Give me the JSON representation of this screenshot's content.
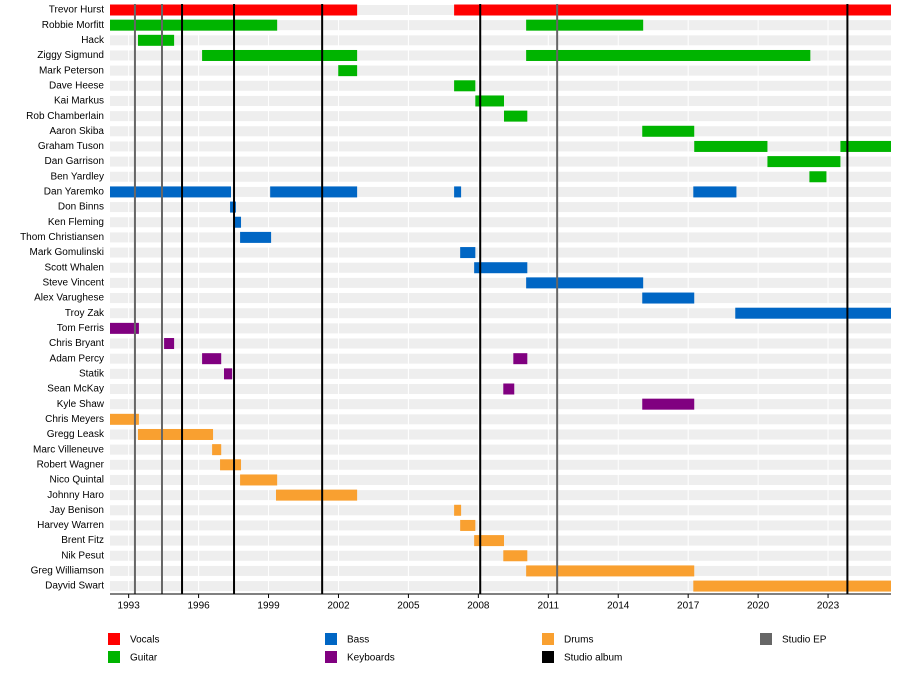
{
  "chart_data": {
    "type": "timeline",
    "categories": [
      "Trevor Hurst",
      "Robbie Morfitt",
      "Hack",
      "Ziggy Sigmund",
      "Mark Peterson",
      "Dave Heese",
      "Kai Markus",
      "Rob Chamberlain",
      "Aaron Skiba",
      "Graham Tuson",
      "Dan Garrison",
      "Ben Yardley",
      "Dan Yaremko",
      "Don Binns",
      "Ken Fleming",
      "Thom Christiansen",
      "Mark Gomulinski",
      "Scott Whalen",
      "Steve Vincent",
      "Alex Varughese",
      "Troy Zak",
      "Tom Ferris",
      "Chris Bryant",
      "Adam Percy",
      "Statik",
      "Sean McKay",
      "Kyle Shaw",
      "Chris Meyers",
      "Gregg Leask",
      "Marc Villeneuve",
      "Robert Wagner",
      "Nico Quintal",
      "Johnny Haro",
      "Jay Benison",
      "Harvey Warren",
      "Brent Fitz",
      "Nik Pesut",
      "Greg Williamson",
      "Dayvid Swart"
    ],
    "series": [
      {
        "name": "Vocals",
        "color": "#ff0000",
        "values": [
          [
            [
              1992.2,
              2002.8
            ],
            [
              2006.96,
              2025.7
            ]
          ],
          [],
          [],
          [],
          [],
          [],
          [],
          [],
          [],
          [],
          [],
          [],
          [],
          [],
          [],
          [],
          [],
          [],
          [],
          [],
          [],
          [],
          [],
          [],
          [],
          [],
          [],
          [],
          [],
          [],
          [],
          [],
          [],
          [],
          [],
          [],
          [],
          [],
          []
        ]
      },
      {
        "name": "Guitar",
        "color": "#00b400",
        "values": [
          [],
          [
            [
              1992.2,
              1999.37
            ],
            [
              2010.05,
              2015.07
            ]
          ],
          [
            [
              1993.4,
              1994.95
            ]
          ],
          [
            [
              1996.15,
              2002.8
            ],
            [
              2010.05,
              2022.24
            ]
          ],
          [
            [
              2001.99,
              2002.8
            ]
          ],
          [
            [
              2006.96,
              2007.87
            ]
          ],
          [
            [
              2007.87,
              2009.1
            ]
          ],
          [
            [
              2009.1,
              2010.1
            ]
          ],
          [
            [
              2015.03,
              2017.26
            ]
          ],
          [
            [
              2017.26,
              2020.4
            ],
            [
              2023.53,
              2025.7
            ]
          ],
          [
            [
              2020.4,
              2023.53
            ]
          ],
          [
            [
              2022.2,
              2022.93
            ]
          ],
          [],
          [],
          [],
          [],
          [],
          [],
          [],
          [],
          [],
          [],
          [],
          [],
          [],
          [],
          [],
          [],
          [],
          [],
          [],
          [],
          [],
          [],
          [],
          [],
          [],
          [],
          []
        ]
      },
      {
        "name": "Bass",
        "color": "#0066c4",
        "values": [
          [],
          [],
          [],
          [],
          [],
          [],
          [],
          [],
          [],
          [],
          [],
          [],
          [
            [
              1992.2,
              1997.39
            ],
            [
              1999.07,
              2002.8
            ],
            [
              2006.96,
              2007.26
            ],
            [
              2017.22,
              2019.07
            ]
          ],
          [
            [
              1997.35,
              1997.6
            ]
          ],
          [
            [
              1997.56,
              1997.82
            ]
          ],
          [
            [
              1997.78,
              1999.11
            ]
          ],
          [
            [
              2007.22,
              2007.87
            ]
          ],
          [
            [
              2007.82,
              2010.1
            ]
          ],
          [
            [
              2010.05,
              2015.07
            ]
          ],
          [
            [
              2015.03,
              2017.26
            ]
          ],
          [
            [
              2019.02,
              2025.7
            ]
          ],
          [],
          [],
          [],
          [],
          [],
          [],
          [],
          [],
          [],
          [],
          [],
          [],
          [],
          [],
          [],
          [],
          [],
          []
        ]
      },
      {
        "name": "Keyboards",
        "color": "#800080",
        "values": [
          [],
          [],
          [],
          [],
          [],
          [],
          [],
          [],
          [],
          [],
          [],
          [],
          [],
          [],
          [],
          [],
          [],
          [],
          [],
          [],
          [],
          [
            [
              1992.2,
              1993.44
            ]
          ],
          [
            [
              1994.52,
              1994.95
            ]
          ],
          [
            [
              1996.15,
              1996.97
            ],
            [
              2009.5,
              2010.1
            ]
          ],
          [
            [
              1997.09,
              1997.44
            ]
          ],
          [
            [
              2009.07,
              2009.54
            ]
          ],
          [
            [
              2015.03,
              2017.26
            ]
          ],
          [],
          [],
          [],
          [],
          [],
          [],
          [],
          [],
          [],
          [],
          [],
          []
        ]
      },
      {
        "name": "Drums",
        "color": "#f9a030",
        "values": [
          [],
          [],
          [],
          [],
          [],
          [],
          [],
          [],
          [],
          [],
          [],
          [],
          [],
          [],
          [],
          [],
          [],
          [],
          [],
          [],
          [],
          [],
          [],
          [],
          [],
          [],
          [],
          [
            [
              1992.2,
              1993.44
            ]
          ],
          [
            [
              1993.4,
              1996.62
            ]
          ],
          [
            [
              1996.58,
              1996.97
            ]
          ],
          [
            [
              1996.92,
              1997.82
            ]
          ],
          [
            [
              1997.78,
              1999.37
            ]
          ],
          [
            [
              1999.32,
              2002.8
            ]
          ],
          [
            [
              2006.96,
              2007.26
            ]
          ],
          [
            [
              2007.22,
              2007.87
            ]
          ],
          [
            [
              2007.82,
              2009.1
            ]
          ],
          [
            [
              2009.07,
              2010.1
            ]
          ],
          [
            [
              2010.05,
              2017.26
            ]
          ],
          [
            [
              2017.22,
              2025.7
            ]
          ]
        ]
      }
    ],
    "lines": [
      {
        "name": "Studio EP",
        "color": "#666666",
        "values": [
          1993.27,
          1994.43,
          2011.38
        ]
      },
      {
        "name": "Studio album",
        "color": "#000000",
        "values": [
          1995.29,
          1997.52,
          2001.3,
          2008.08,
          2023.83
        ]
      }
    ],
    "xlim": [
      1992.2,
      2025.7
    ],
    "xticks": [
      1993,
      1996,
      1999,
      2002,
      2005,
      2008,
      2011,
      2014,
      2017,
      2020,
      2023
    ]
  }
}
